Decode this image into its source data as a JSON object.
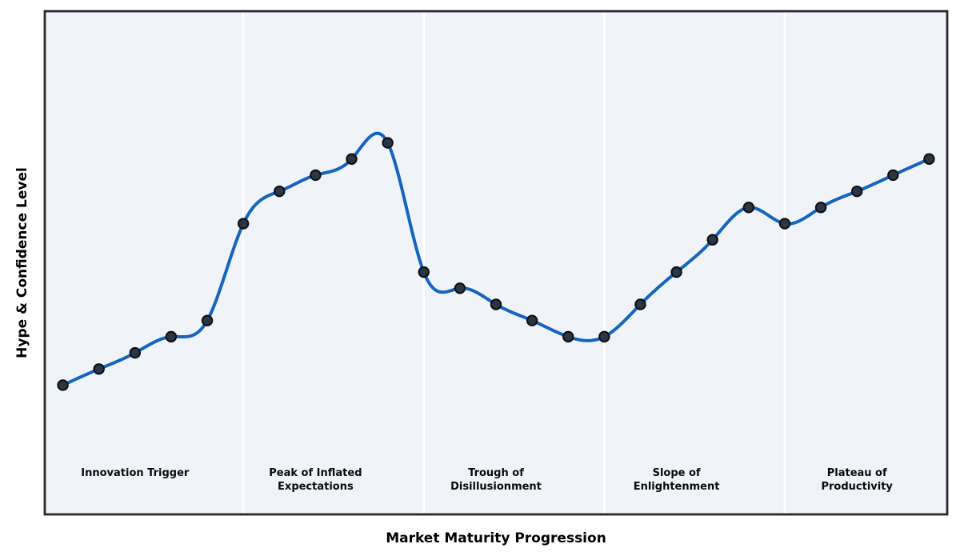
{
  "chart_data": {
    "type": "line",
    "title": "",
    "xlabel": "Market Maturity Progression",
    "ylabel": "Hype & Confidence Level",
    "x": [
      0,
      1,
      2,
      3,
      4,
      5,
      6,
      7,
      8,
      9,
      10,
      11,
      12,
      13,
      14,
      15,
      16,
      17,
      18,
      19,
      20,
      21,
      22,
      23,
      24
    ],
    "values": [
      8,
      9,
      10,
      11,
      12,
      18,
      20,
      21,
      22,
      23,
      15,
      14,
      13,
      12,
      11,
      11,
      13,
      15,
      17,
      19,
      18,
      19,
      20,
      21,
      22
    ],
    "xlim": [
      -0.5,
      24.5
    ],
    "ylim": [
      0,
      31.15
    ],
    "grid": false,
    "legend": "none",
    "smooth_spline": true,
    "marker": "circle",
    "phase_separators_x": [
      5,
      10,
      15,
      20
    ],
    "phases": [
      {
        "label": "Innovation Trigger",
        "x_start": -0.5,
        "x_end": 5,
        "label_x": 2
      },
      {
        "label": "Peak of Inflated\nExpectations",
        "x_start": 5,
        "x_end": 10,
        "label_x": 7
      },
      {
        "label": "Trough of\nDisillusionment",
        "x_start": 10,
        "x_end": 15,
        "label_x": 12
      },
      {
        "label": "Slope of\nEnlightenment",
        "x_start": 15,
        "x_end": 20,
        "label_x": 17
      },
      {
        "label": "Plateau of\nProductivity",
        "x_start": 20,
        "x_end": 24.5,
        "label_x": 22
      }
    ],
    "colors": {
      "plot_background": "#f0f4f8",
      "outer_background": "#ffffff",
      "line": "#1565c0",
      "marker_fill": "#2b3644",
      "marker_edge": "#0b0f16",
      "separator": "#ffffff",
      "border": "#26282c",
      "label_text": "#0a0a0a"
    }
  }
}
